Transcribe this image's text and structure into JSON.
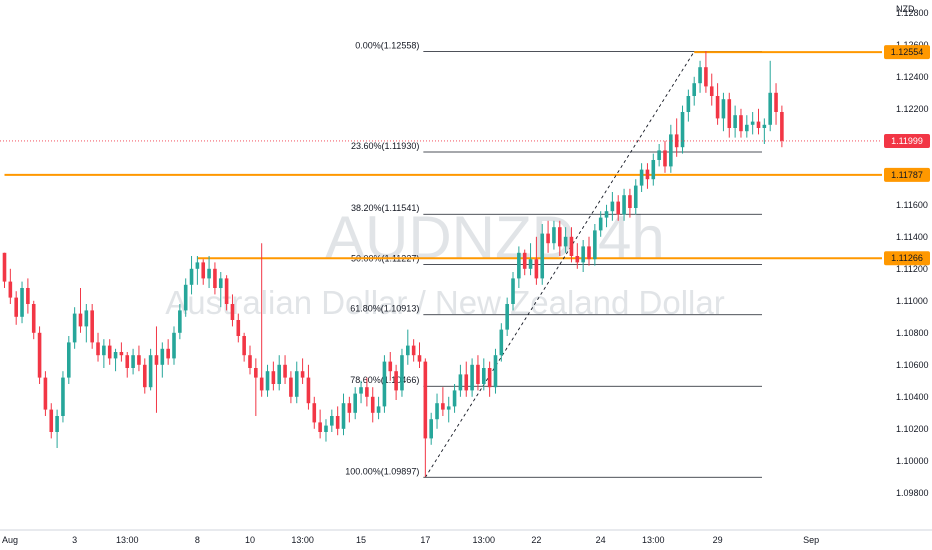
{
  "chart_data": {
    "type": "candlestick",
    "symbol": "AUDNZD",
    "interval": "4h",
    "description": "Australian Dollar / New Zealand Dollar",
    "currency": "NZD",
    "ylim": [
      1.097,
      1.1283
    ],
    "y_ticks": [
      "1.12800",
      "1.12600",
      "1.12400",
      "1.12200",
      "1.11600",
      "1.11400",
      "1.11200",
      "1.11000",
      "1.10800",
      "1.10600",
      "1.10400",
      "1.10200",
      "1.10000",
      "1.09800"
    ],
    "y_tick_values": [
      1.128,
      1.126,
      1.124,
      1.122,
      1.116,
      1.114,
      1.112,
      1.11,
      1.108,
      1.106,
      1.104,
      1.102,
      1.1,
      1.098
    ],
    "x_ticks": [
      {
        "label": "Aug",
        "bar": 0
      },
      {
        "label": "3",
        "bar": 12
      },
      {
        "label": "13:00",
        "bar": 21
      },
      {
        "label": "8",
        "bar": 33
      },
      {
        "label": "10",
        "bar": 42
      },
      {
        "label": "13:00",
        "bar": 51
      },
      {
        "label": "15",
        "bar": 61
      },
      {
        "label": "17",
        "bar": 72
      },
      {
        "label": "13:00",
        "bar": 82
      },
      {
        "label": "22",
        "bar": 91
      },
      {
        "label": "24",
        "bar": 102
      },
      {
        "label": "13:00",
        "bar": 111
      },
      {
        "label": "29",
        "bar": 122
      },
      {
        "label": "Sep",
        "bar": 138
      }
    ],
    "bar_count": 140,
    "candles": [
      [
        1.113,
        1.113,
        1.1108,
        1.1112
      ],
      [
        1.1112,
        1.112,
        1.1098,
        1.1102
      ],
      [
        1.1102,
        1.1106,
        1.1085,
        1.109
      ],
      [
        1.109,
        1.1112,
        1.1086,
        1.1108
      ],
      [
        1.1108,
        1.1114,
        1.1092,
        1.1098
      ],
      [
        1.1098,
        1.11,
        1.1076,
        1.108
      ],
      [
        1.108,
        1.1084,
        1.1048,
        1.1052
      ],
      [
        1.1052,
        1.1056,
        1.1028,
        1.1032
      ],
      [
        1.1032,
        1.1036,
        1.1014,
        1.1018
      ],
      [
        1.1018,
        1.1032,
        1.1008,
        1.1028
      ],
      [
        1.1028,
        1.1056,
        1.1024,
        1.1052
      ],
      [
        1.1052,
        1.1078,
        1.1048,
        1.1074
      ],
      [
        1.1074,
        1.1096,
        1.107,
        1.1092
      ],
      [
        1.1092,
        1.1108,
        1.108,
        1.1084
      ],
      [
        1.1084,
        1.1098,
        1.1074,
        1.1094
      ],
      [
        1.1094,
        1.1098,
        1.107,
        1.1074
      ],
      [
        1.1074,
        1.108,
        1.1062,
        1.1066
      ],
      [
        1.1066,
        1.1076,
        1.1058,
        1.1072
      ],
      [
        1.1072,
        1.1076,
        1.106,
        1.1064
      ],
      [
        1.1064,
        1.107,
        1.1056,
        1.1068
      ],
      [
        1.1068,
        1.1074,
        1.1062,
        1.1066
      ],
      [
        1.1066,
        1.1068,
        1.1052,
        1.1058
      ],
      [
        1.1058,
        1.107,
        1.1054,
        1.1066
      ],
      [
        1.1066,
        1.1072,
        1.1056,
        1.106
      ],
      [
        1.106,
        1.1064,
        1.1042,
        1.1046
      ],
      [
        1.1046,
        1.107,
        1.1044,
        1.1066
      ],
      [
        1.1066,
        1.1084,
        1.103,
        1.106
      ],
      [
        1.106,
        1.1074,
        1.1052,
        1.107
      ],
      [
        1.107,
        1.1076,
        1.106,
        1.1064
      ],
      [
        1.1064,
        1.1084,
        1.106,
        1.108
      ],
      [
        1.108,
        1.1098,
        1.1076,
        1.1094
      ],
      [
        1.1094,
        1.1114,
        1.109,
        1.111
      ],
      [
        1.111,
        1.1128,
        1.1104,
        1.112
      ],
      [
        1.112,
        1.1128,
        1.111,
        1.1124
      ],
      [
        1.1124,
        1.1126,
        1.111,
        1.1114
      ],
      [
        1.1114,
        1.1128,
        1.1108,
        1.112
      ],
      [
        1.112,
        1.1124,
        1.1104,
        1.1108
      ],
      [
        1.1108,
        1.1118,
        1.1096,
        1.1114
      ],
      [
        1.1114,
        1.1116,
        1.1094,
        1.1098
      ],
      [
        1.1098,
        1.1104,
        1.1084,
        1.1088
      ],
      [
        1.1088,
        1.1092,
        1.1074,
        1.1078
      ],
      [
        1.1078,
        1.108,
        1.1062,
        1.1066
      ],
      [
        1.1066,
        1.1072,
        1.1054,
        1.1058
      ],
      [
        1.1058,
        1.1064,
        1.1028,
        1.1052
      ],
      [
        1.1052,
        1.1136,
        1.104,
        1.1044
      ],
      [
        1.1044,
        1.106,
        1.104,
        1.1056
      ],
      [
        1.1056,
        1.1062,
        1.1044,
        1.1048
      ],
      [
        1.1048,
        1.1066,
        1.1044,
        1.106
      ],
      [
        1.106,
        1.1066,
        1.1048,
        1.1052
      ],
      [
        1.1052,
        1.1056,
        1.1036,
        1.104
      ],
      [
        1.104,
        1.1062,
        1.1036,
        1.1056
      ],
      [
        1.1056,
        1.1064,
        1.1048,
        1.1052
      ],
      [
        1.1052,
        1.106,
        1.1032,
        1.1036
      ],
      [
        1.1036,
        1.104,
        1.102,
        1.1024
      ],
      [
        1.1024,
        1.1032,
        1.1014,
        1.1018
      ],
      [
        1.1018,
        1.1026,
        1.1012,
        1.1022
      ],
      [
        1.1022,
        1.1032,
        1.1018,
        1.1028
      ],
      [
        1.1028,
        1.1034,
        1.1016,
        1.102
      ],
      [
        1.102,
        1.1042,
        1.1016,
        1.1036
      ],
      [
        1.1036,
        1.104,
        1.1024,
        1.103
      ],
      [
        1.103,
        1.1046,
        1.1026,
        1.1042
      ],
      [
        1.1042,
        1.105,
        1.1036,
        1.1046
      ],
      [
        1.1046,
        1.1052,
        1.1034,
        1.104
      ],
      [
        1.104,
        1.1046,
        1.1024,
        1.103
      ],
      [
        1.103,
        1.104,
        1.1026,
        1.1034
      ],
      [
        1.1034,
        1.1066,
        1.103,
        1.1062
      ],
      [
        1.1062,
        1.1068,
        1.105,
        1.1056
      ],
      [
        1.1056,
        1.106,
        1.1038,
        1.1044
      ],
      [
        1.1044,
        1.107,
        1.104,
        1.1066
      ],
      [
        1.1066,
        1.1082,
        1.106,
        1.1072
      ],
      [
        1.1072,
        1.1076,
        1.1062,
        1.1066
      ],
      [
        1.1066,
        1.1074,
        1.1058,
        1.1062
      ],
      [
        1.1062,
        1.1064,
        1.099,
        1.1014
      ],
      [
        1.1014,
        1.103,
        1.101,
        1.1026
      ],
      [
        1.1026,
        1.1042,
        1.102,
        1.1036
      ],
      [
        1.1036,
        1.1046,
        1.1028,
        1.1032
      ],
      [
        1.1032,
        1.104,
        1.1024,
        1.1034
      ],
      [
        1.1034,
        1.1048,
        1.103,
        1.1044
      ],
      [
        1.1044,
        1.106,
        1.104,
        1.1054
      ],
      [
        1.1054,
        1.1062,
        1.104,
        1.1044
      ],
      [
        1.1044,
        1.1064,
        1.104,
        1.106
      ],
      [
        1.106,
        1.1066,
        1.1044,
        1.1048
      ],
      [
        1.1048,
        1.1064,
        1.1044,
        1.1058
      ],
      [
        1.1058,
        1.1062,
        1.104,
        1.1046
      ],
      [
        1.1046,
        1.107,
        1.1042,
        1.1066
      ],
      [
        1.1066,
        1.1086,
        1.1062,
        1.1082
      ],
      [
        1.1082,
        1.1102,
        1.1078,
        1.1098
      ],
      [
        1.1098,
        1.1118,
        1.1094,
        1.1114
      ],
      [
        1.1114,
        1.1134,
        1.1108,
        1.113
      ],
      [
        1.113,
        1.1132,
        1.1116,
        1.112
      ],
      [
        1.112,
        1.1136,
        1.1116,
        1.1126
      ],
      [
        1.1126,
        1.114,
        1.111,
        1.1114
      ],
      [
        1.1114,
        1.1148,
        1.111,
        1.1142
      ],
      [
        1.1142,
        1.115,
        1.113,
        1.1136
      ],
      [
        1.1136,
        1.115,
        1.1132,
        1.1146
      ],
      [
        1.1146,
        1.115,
        1.1128,
        1.1134
      ],
      [
        1.1134,
        1.1146,
        1.113,
        1.114
      ],
      [
        1.114,
        1.1146,
        1.1124,
        1.1128
      ],
      [
        1.1128,
        1.1136,
        1.112,
        1.1124
      ],
      [
        1.1124,
        1.1138,
        1.1118,
        1.1134
      ],
      [
        1.1134,
        1.114,
        1.1122,
        1.1126
      ],
      [
        1.1126,
        1.1148,
        1.1122,
        1.1144
      ],
      [
        1.1144,
        1.1156,
        1.114,
        1.1152
      ],
      [
        1.1152,
        1.116,
        1.1146,
        1.1156
      ],
      [
        1.1156,
        1.1168,
        1.115,
        1.1162
      ],
      [
        1.1162,
        1.1166,
        1.115,
        1.1154
      ],
      [
        1.1154,
        1.117,
        1.115,
        1.1166
      ],
      [
        1.1166,
        1.117,
        1.1152,
        1.1158
      ],
      [
        1.1158,
        1.1176,
        1.1154,
        1.1172
      ],
      [
        1.1172,
        1.1186,
        1.1168,
        1.1182
      ],
      [
        1.1182,
        1.1186,
        1.117,
        1.1176
      ],
      [
        1.1176,
        1.1192,
        1.1172,
        1.1188
      ],
      [
        1.1188,
        1.1198,
        1.1184,
        1.1194
      ],
      [
        1.1194,
        1.12,
        1.118,
        1.1184
      ],
      [
        1.1184,
        1.121,
        1.118,
        1.1204
      ],
      [
        1.1204,
        1.1214,
        1.119,
        1.1196
      ],
      [
        1.1196,
        1.1222,
        1.1192,
        1.1218
      ],
      [
        1.1218,
        1.1232,
        1.1212,
        1.1228
      ],
      [
        1.1228,
        1.124,
        1.1222,
        1.1236
      ],
      [
        1.1236,
        1.125,
        1.123,
        1.1246
      ],
      [
        1.1246,
        1.1256,
        1.123,
        1.1234
      ],
      [
        1.1234,
        1.1242,
        1.1222,
        1.1228
      ],
      [
        1.1228,
        1.1236,
        1.121,
        1.1214
      ],
      [
        1.1214,
        1.123,
        1.1206,
        1.1226
      ],
      [
        1.1226,
        1.123,
        1.1202,
        1.1208
      ],
      [
        1.1208,
        1.1222,
        1.1202,
        1.1216
      ],
      [
        1.1216,
        1.122,
        1.1202,
        1.1206
      ],
      [
        1.1206,
        1.1216,
        1.1202,
        1.121
      ],
      [
        1.121,
        1.1218,
        1.1204,
        1.1212
      ],
      [
        1.1212,
        1.122,
        1.1204,
        1.1208
      ],
      [
        1.1208,
        1.1214,
        1.1198,
        1.121
      ],
      [
        1.121,
        1.125,
        1.1206,
        1.123
      ],
      [
        1.123,
        1.1236,
        1.121,
        1.1218
      ],
      [
        1.1218,
        1.1222,
        1.1196,
        1.12
      ]
    ],
    "fib": {
      "levels": [
        {
          "label": "0.00%(1.12558)",
          "value": 1.12558
        },
        {
          "label": "23.60%(1.11930)",
          "value": 1.1193
        },
        {
          "label": "38.20%(1.11541)",
          "value": 1.11541
        },
        {
          "label": "50.00%(1.11227)",
          "value": 1.11227
        },
        {
          "label": "61.80%(1.10913)",
          "value": 1.10913
        },
        {
          "label": "78.60%(1.10466)",
          "value": 1.10466
        },
        {
          "label": "100.00%(1.09897)",
          "value": 1.09897
        }
      ],
      "start_bar": 72,
      "end_bar": 118
    },
    "trend_line": {
      "from_bar": 72,
      "from_value": 1.09897,
      "to_bar": 118,
      "to_value": 1.12558
    },
    "horizontal_levels": [
      {
        "label": "1.12554",
        "value": 1.12554,
        "from_bar": 118
      },
      {
        "label": "1.11787",
        "value": 1.11787,
        "from_bar": 0
      },
      {
        "label": "1.11266",
        "value": 1.11266,
        "from_bar": 33
      }
    ],
    "last_price": {
      "label": "1.11999",
      "value": 1.11999
    },
    "colors": {
      "up": "#26a69a",
      "down": "#f23645",
      "level": "#ff9800",
      "price_badge": "#f23645",
      "fib_line": "#131722"
    }
  }
}
